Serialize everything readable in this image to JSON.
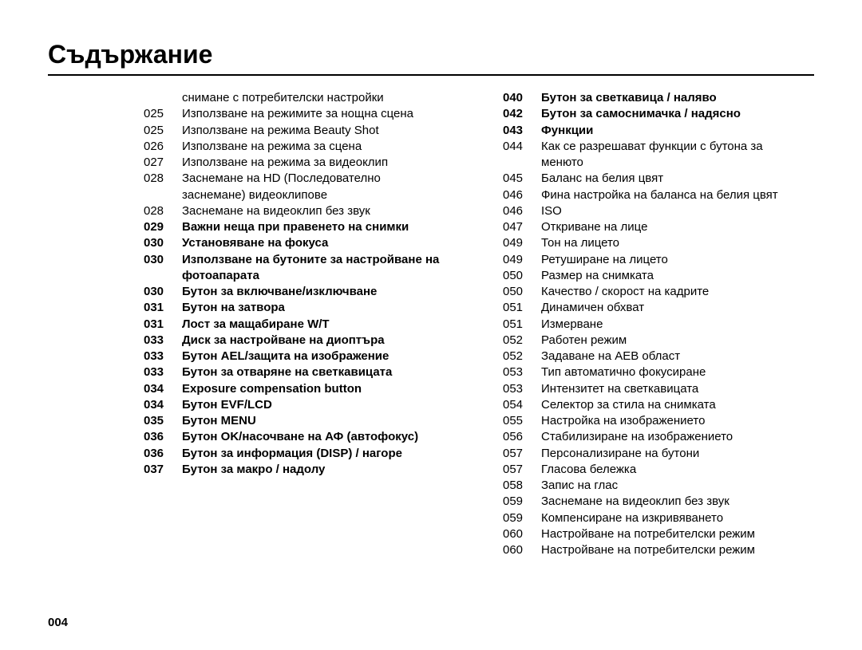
{
  "title": "Съдържание",
  "footer_page": "004",
  "colors": {
    "text": "#000000",
    "background": "#ffffff",
    "rule": "#000000"
  },
  "typography": {
    "title_fontsize": 32,
    "body_fontsize": 15,
    "line_height": 1.35,
    "font_family": "Segoe UI, Arial, sans-serif"
  },
  "left_col": [
    {
      "page": "",
      "text": "снимане с потребителски настройки",
      "bold": false
    },
    {
      "page": "025",
      "text": "Използване на режимите за нощна сцена",
      "bold": false
    },
    {
      "page": "025",
      "text": "Използване на режима Beauty Shot",
      "bold": false
    },
    {
      "page": "026",
      "text": "Използване на режима за сцена",
      "bold": false
    },
    {
      "page": "027",
      "text": "Използване на режима за видеоклип",
      "bold": false
    },
    {
      "page": "028",
      "text": "Заснемане на HD (Последователно заснемане) видеоклипове",
      "bold": false
    },
    {
      "page": "028",
      "text": "Заснемане на видеоклип без звук",
      "bold": false
    },
    {
      "page": "029",
      "text": "Важни неща при правенето на снимки",
      "bold": true
    },
    {
      "page": "030",
      "text": "Установяване на фокуса",
      "bold": true
    },
    {
      "page": "030",
      "text": "Използване на бутоните за настройване на фотоапарата",
      "bold": true
    },
    {
      "page": "030",
      "text": "Бутон за включване/изключване",
      "bold": true
    },
    {
      "page": "031",
      "text": "Бутон на затвора",
      "bold": true
    },
    {
      "page": "031",
      "text": "Лост за мащабиране W/T",
      "bold": true
    },
    {
      "page": "033",
      "text": "Диск за настройване на диоптъра",
      "bold": true
    },
    {
      "page": "033",
      "text": "Бутон AEL/защита на изображение",
      "bold": true
    },
    {
      "page": "033",
      "text": "Бутон за отваряне на светкавицата",
      "bold": true
    },
    {
      "page": "034",
      "text": "Exposure compensation button",
      "bold": true
    },
    {
      "page": "034",
      "text": "Бутон EVF/LCD",
      "bold": true
    },
    {
      "page": "035",
      "text": "Бутон MENU",
      "bold": true
    },
    {
      "page": "036",
      "text": "Бутон OK/насочване на АФ (автофокус)",
      "bold": true
    },
    {
      "page": "036",
      "text": "Бутон за информация (DISP) / нагоре",
      "bold": true
    },
    {
      "page": "037",
      "text": "Бутон за макро / надолу",
      "bold": true
    }
  ],
  "right_col": [
    {
      "page": "040",
      "text": "Бутон за светкавица / наляво",
      "bold": true
    },
    {
      "page": "042",
      "text": "Бутон за самоснимачка / надясно",
      "bold": true
    },
    {
      "page": "043",
      "text": "Функции",
      "bold": true
    },
    {
      "page": "044",
      "text": "Как се разрешават функции с бутона за менюто",
      "bold": false
    },
    {
      "page": "045",
      "text": "Баланс на белия цвят",
      "bold": false
    },
    {
      "page": "046",
      "text": "Фина настройка на баланса на белия цвят",
      "bold": false
    },
    {
      "page": "046",
      "text": "ISO",
      "bold": false
    },
    {
      "page": "047",
      "text": "Откриване на лице",
      "bold": false
    },
    {
      "page": "049",
      "text": "Тон на лицето",
      "bold": false
    },
    {
      "page": "049",
      "text": "Ретуширане на лицето",
      "bold": false
    },
    {
      "page": "050",
      "text": "Размер на снимката",
      "bold": false
    },
    {
      "page": "050",
      "text": "Качество / скорост на кадрите",
      "bold": false
    },
    {
      "page": "051",
      "text": "Динамичен обхват",
      "bold": false
    },
    {
      "page": "051",
      "text": "Измерване",
      "bold": false
    },
    {
      "page": "052",
      "text": "Работен режим",
      "bold": false
    },
    {
      "page": "052",
      "text": "Задаване на AEB област",
      "bold": false
    },
    {
      "page": "053",
      "text": "Тип автоматично фокусиране",
      "bold": false
    },
    {
      "page": "053",
      "text": "Интензитет на светкавицата",
      "bold": false
    },
    {
      "page": "054",
      "text": "Селектор за стила на снимката",
      "bold": false
    },
    {
      "page": "055",
      "text": "Настройка на изображението",
      "bold": false
    },
    {
      "page": "056",
      "text": "Стабилизиране на изображението",
      "bold": false
    },
    {
      "page": "057",
      "text": "Персонализиране на бутони",
      "bold": false
    },
    {
      "page": "057",
      "text": "Гласова бележка",
      "bold": false
    },
    {
      "page": "058",
      "text": "Запис на глас",
      "bold": false
    },
    {
      "page": "059",
      "text": "Заснемане на видеоклип без звук",
      "bold": false
    },
    {
      "page": "059",
      "text": "Компенсиране на изкривяването",
      "bold": false
    },
    {
      "page": "060",
      "text": "Настройване на потребителски режим",
      "bold": false
    },
    {
      "page": "060",
      "text": "Настройване на потребителски режим",
      "bold": false
    }
  ]
}
